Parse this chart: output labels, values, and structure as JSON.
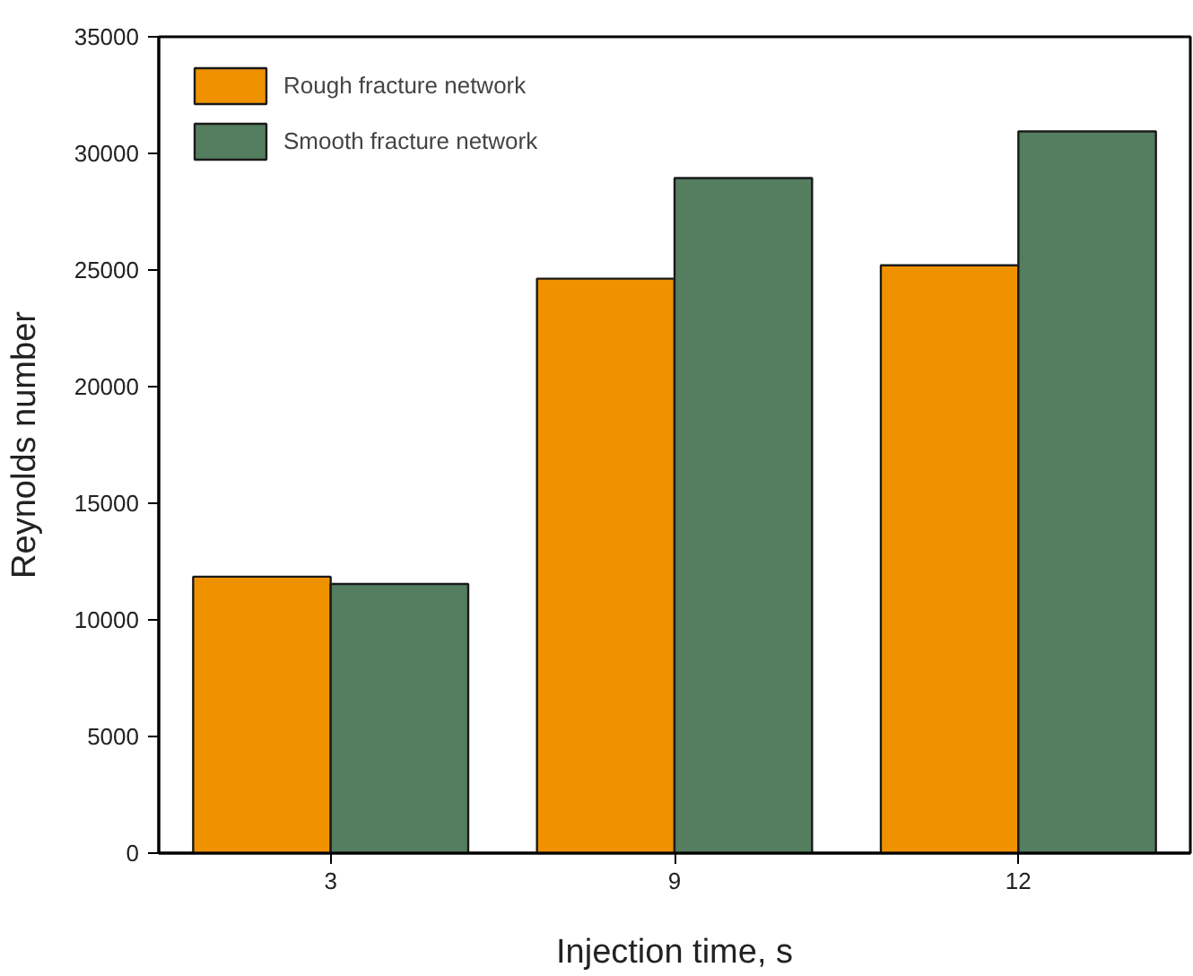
{
  "chart_data": {
    "type": "bar",
    "xlabel": "Injection time, s",
    "ylabel": "Reynolds number",
    "categories": [
      "3",
      "9",
      "12"
    ],
    "series": [
      {
        "name": "Rough fracture network",
        "color": "#f09200",
        "values": [
          11850,
          24630,
          25200
        ]
      },
      {
        "name": "Smooth fracture network",
        "color": "#557d5f",
        "values": [
          11540,
          28940,
          30940
        ]
      }
    ],
    "ylim": [
      0,
      35000
    ],
    "yticks": [
      0,
      5000,
      10000,
      15000,
      20000,
      25000,
      30000,
      35000
    ],
    "grid": false,
    "legend": "top left"
  }
}
